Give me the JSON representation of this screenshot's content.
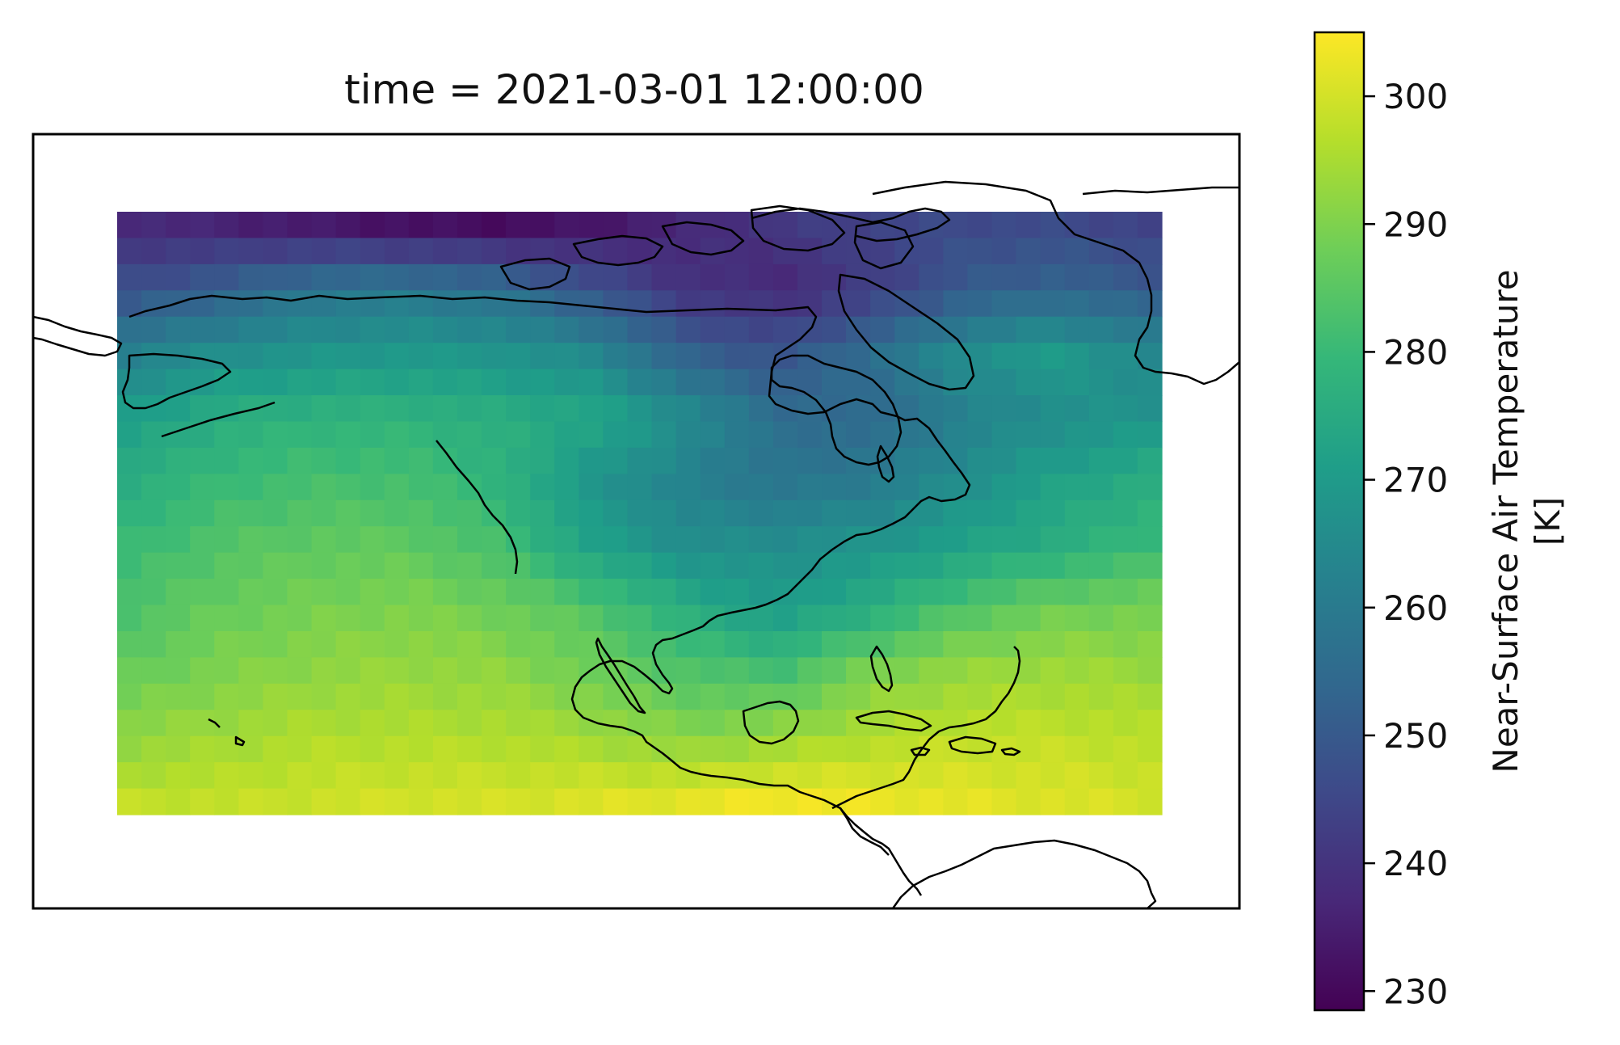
{
  "title": "time = 2021-03-01 12:00:00",
  "colorbar": {
    "label_line1": "Near-Surface Air Temperature",
    "label_line2": "[K]",
    "ticks": [
      230,
      240,
      250,
      260,
      270,
      280,
      290,
      300
    ],
    "vmin": 228.5,
    "vmax": 305.0,
    "colormap": "viridis"
  },
  "chart_data": {
    "type": "heatmap",
    "title": "time = 2021-03-01 12:00:00",
    "variable": "Near-Surface Air Temperature",
    "units": "K",
    "region": "North America",
    "value_range": [
      228.5,
      305.0
    ],
    "grid_rows": 23,
    "grid_cols": 43,
    "row_anchor_values": [
      [
        238,
        236,
        234,
        232,
        231,
        233,
        237,
        241,
        244,
        246,
        246,
        244
      ],
      [
        247,
        252,
        258,
        259,
        256,
        248,
        240,
        237,
        242,
        250,
        253,
        250
      ],
      [
        262,
        266,
        268,
        269,
        268,
        264,
        252,
        248,
        256,
        266,
        270,
        264
      ],
      [
        271,
        276,
        278,
        278,
        276,
        274,
        266,
        256,
        254,
        262,
        266,
        268
      ],
      [
        276,
        280,
        282,
        282,
        278,
        268,
        262,
        258,
        260,
        266,
        272,
        276
      ],
      [
        280,
        284,
        286,
        286,
        282,
        272,
        266,
        266,
        268,
        272,
        276,
        280
      ],
      [
        283,
        287,
        289,
        290,
        288,
        284,
        276,
        270,
        276,
        284,
        288,
        289
      ],
      [
        287,
        290,
        292,
        293,
        292,
        288,
        284,
        282,
        290,
        293,
        294,
        293
      ],
      [
        292,
        294,
        296,
        296,
        296,
        294,
        291,
        293,
        296,
        298,
        298,
        297
      ],
      [
        298,
        298,
        299,
        300,
        300,
        301,
        302,
        304,
        303,
        302,
        301,
        300
      ]
    ]
  }
}
